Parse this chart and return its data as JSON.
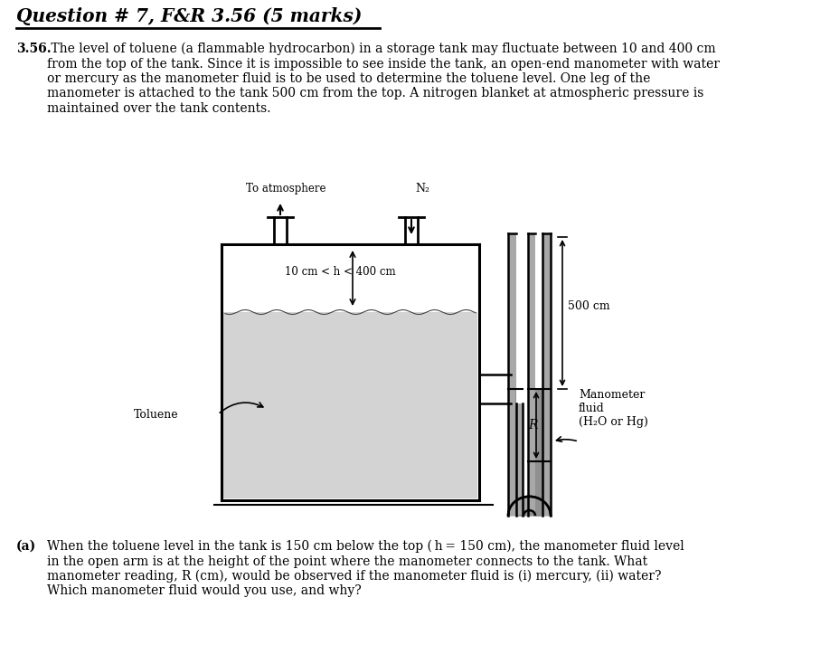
{
  "title": "Question # 7, F&R 3.56 (5 marks)",
  "problem_number": "3.56.",
  "problem_text_line1": " The level of toluene (a flammable hydrocarbon) in a storage tank may fluctuate between 10 and 400 cm",
  "problem_text_line2": "from the top of the tank. Since it is impossible to see inside the tank, an open-end manometer with water",
  "problem_text_line3": "or mercury as the manometer fluid is to be used to determine the toluene level. One leg of the",
  "problem_text_line4": "manometer is attached to the tank 500 cm from the top. A nitrogen blanket at atmospheric pressure is",
  "problem_text_line5": "maintained over the tank contents.",
  "part_a_bold": "(a)",
  "part_a_line1": " When the toluene level in the tank is 150 cm below the top (h = 150 cm), the manometer fluid level",
  "part_a_line2": "in the open arm is at the height of the point where the manometer connects to the tank. What",
  "part_a_line3": "manometer reading, R (cm), would be observed if the manometer fluid is (i) mercury, (ii) water?",
  "part_a_line4": "Which manometer fluid would you use, and why?",
  "label_to_atmosphere": "To atmosphere",
  "label_N2": "N₂",
  "label_h_range": "10 cm < h < 400 cm",
  "label_500cm": "500 cm",
  "label_toluene": "Toluene",
  "label_R": "R",
  "label_manometer_fluid": "Manometer\nfluid\n(H₂O or Hg)",
  "bg_color": "#ffffff",
  "tank_fill_color": "#d3d3d3",
  "tube_wall_color": "#a8a8a8",
  "fluid_color": "#909090"
}
